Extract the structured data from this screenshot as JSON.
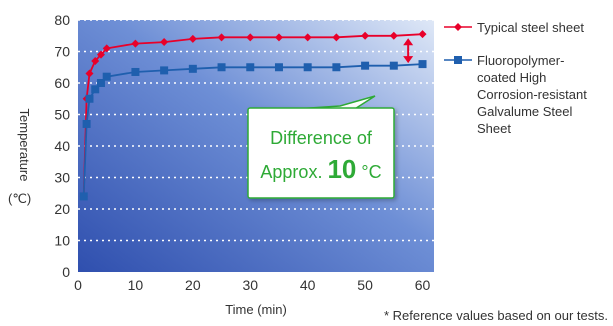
{
  "chart_data": {
    "type": "line",
    "xlabel": "Time (min)",
    "ylabel_main": "Temperature",
    "ylabel_unit": "(℃)",
    "xlim": [
      0,
      62
    ],
    "ylim": [
      0,
      80
    ],
    "xticks": [
      0,
      10,
      20,
      30,
      40,
      50,
      60
    ],
    "yticks": [
      0,
      10,
      20,
      30,
      40,
      50,
      60,
      70,
      80
    ],
    "grid": true,
    "legend_position": "right",
    "series": [
      {
        "name": "Typical steel sheet",
        "color": "#e8002a",
        "marker": "diamond",
        "x": [
          1,
          1.5,
          2,
          3,
          4,
          5,
          10,
          15,
          20,
          25,
          30,
          35,
          40,
          45,
          50,
          55,
          60
        ],
        "y": [
          24,
          55,
          63,
          67,
          69,
          71,
          72.5,
          73,
          74,
          74.5,
          74.5,
          74.5,
          74.5,
          74.5,
          75,
          75,
          75.5
        ]
      },
      {
        "name": "Fluoropolymer-coated High Corrosion-resistant Galvalume Steel Sheet",
        "legend_lines": [
          "Fluoropolymer-",
          "coated High",
          "Corrosion-resistant",
          "Galvalume Steel",
          "Sheet"
        ],
        "color": "#1f5fae",
        "marker": "square",
        "x": [
          1,
          1.5,
          2,
          3,
          4,
          5,
          10,
          15,
          20,
          25,
          30,
          35,
          40,
          45,
          50,
          55,
          60
        ],
        "y": [
          24,
          47,
          55,
          58,
          60,
          62,
          63.5,
          64,
          64.5,
          65,
          65,
          65,
          65,
          65,
          65.5,
          65.5,
          66
        ]
      }
    ],
    "annotation": {
      "line1": "Difference of",
      "line2_prefix": "Approx. ",
      "line2_value": "10",
      "line2_unit": "°C",
      "color": "#2eaa36"
    },
    "arrow_color": "#e8002a",
    "footnote": "* Reference values based on our tests."
  }
}
